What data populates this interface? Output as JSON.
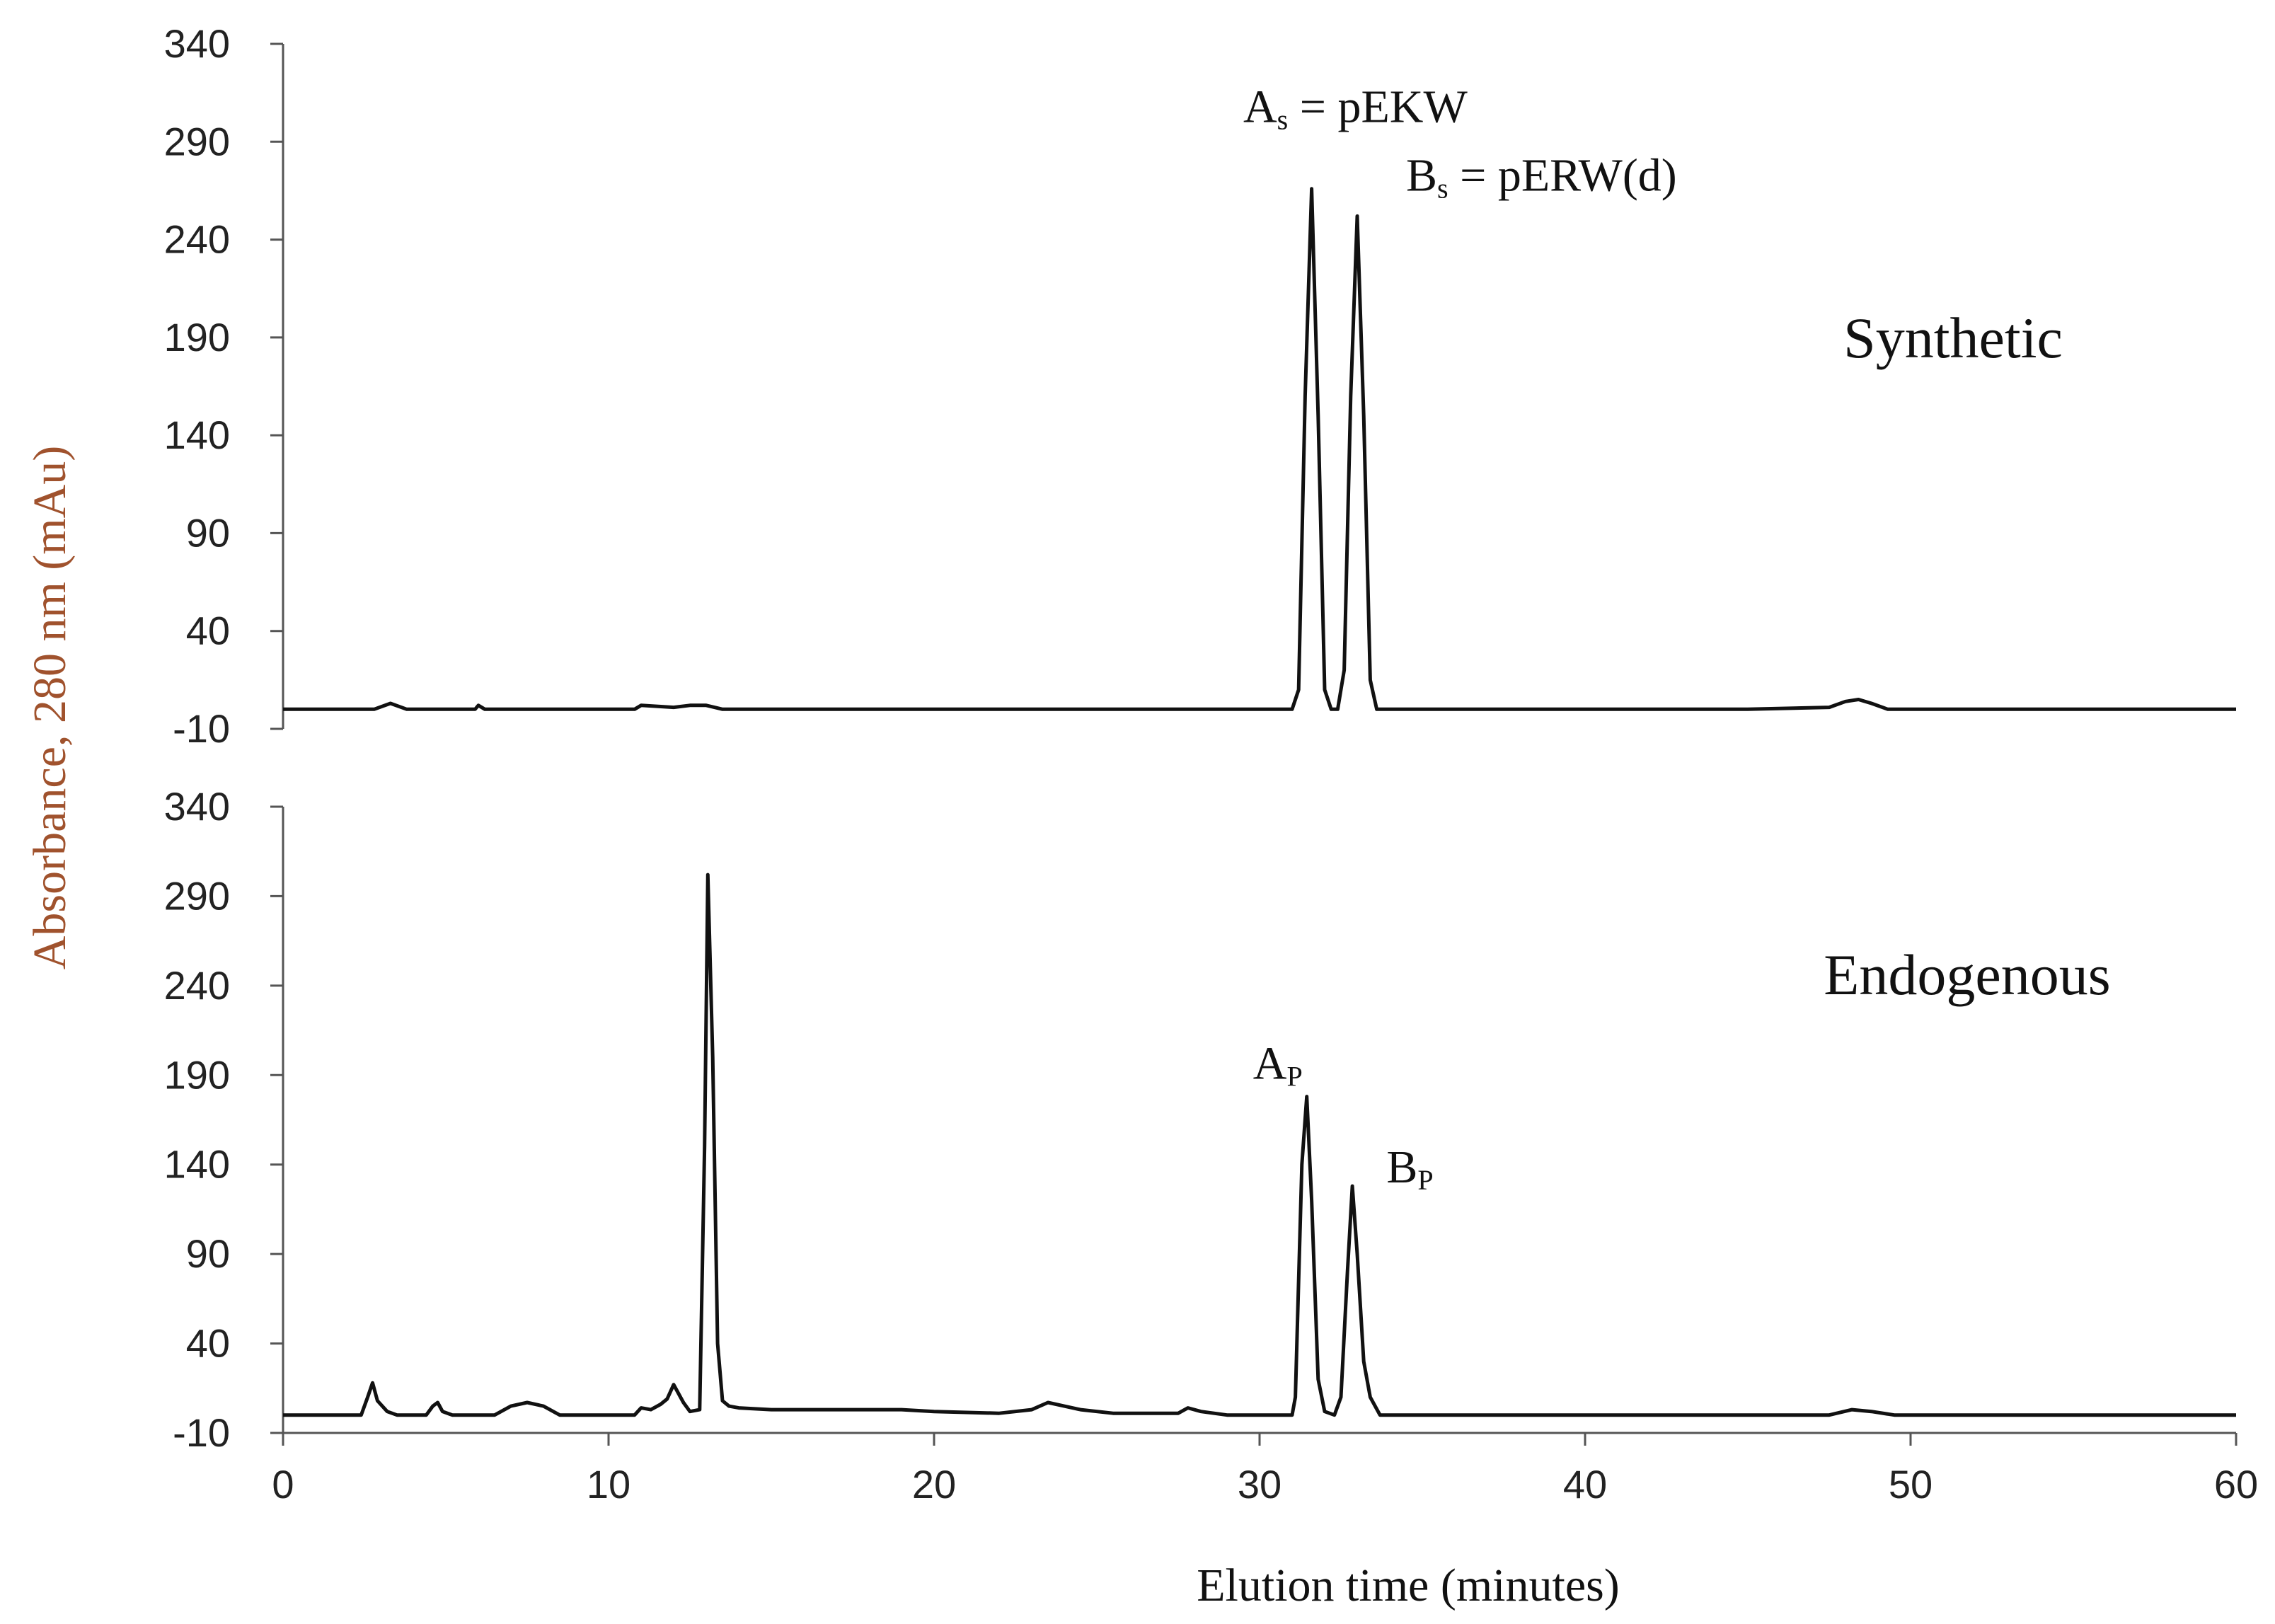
{
  "chart_data": {
    "type": "line",
    "xlabel": "Elution time (minutes)",
    "ylabel": "Absorbance, 280 nm (mAu)",
    "xlim": [
      0,
      60
    ],
    "x_ticks": [
      "0",
      "10",
      "20",
      "30",
      "40",
      "50",
      "60"
    ],
    "panels": [
      {
        "label": "Synthetic",
        "ylim": [
          -10,
          340
        ],
        "y_ticks": [
          "340",
          "290",
          "240",
          "190",
          "140",
          "90",
          "40",
          "-10"
        ],
        "annotations": [
          {
            "main": "A",
            "sub": "s",
            "rest": " = pEKW",
            "x": 29.5,
            "y": 300
          },
          {
            "main": "B",
            "sub": "s",
            "rest": " = pERW(d)",
            "x": 34.5,
            "y": 265
          }
        ],
        "series": [
          {
            "x": [
              0,
              2.8,
              3.3,
              3.8,
              4.5,
              5.9,
              6.0,
              6.2,
              10.8,
              11.0,
              12.0,
              12.5,
              13.0,
              13.5,
              20,
              25,
              30,
              31.0,
              31.2,
              31.4,
              31.6,
              31.8,
              32.0,
              32.2,
              32.4,
              32.6,
              32.8,
              33.0,
              33.2,
              33.4,
              33.6,
              35,
              40,
              45,
              47.5,
              48.0,
              48.4,
              48.8,
              49.3,
              55,
              60
            ],
            "y": [
              0,
              0,
              3,
              0,
              0,
              0,
              2,
              0,
              0,
              2,
              1,
              2,
              2,
              0,
              0,
              0,
              0,
              0,
              10,
              160,
              266,
              150,
              10,
              0,
              0,
              20,
              160,
              252,
              150,
              15,
              0,
              0,
              0,
              0,
              1,
              4,
              5,
              3,
              0,
              0,
              0
            ]
          }
        ]
      },
      {
        "label": "Endogenous",
        "ylim": [
          -10,
          340
        ],
        "y_ticks": [
          "340",
          "290",
          "240",
          "190",
          "140",
          "90",
          "40",
          "-10"
        ],
        "annotations": [
          {
            "main": "A",
            "sub": "P",
            "rest": "",
            "x": 29.8,
            "y": 188
          },
          {
            "main": "B",
            "sub": "P",
            "rest": "",
            "x": 33.9,
            "y": 130
          }
        ],
        "series": [
          {
            "x": [
              0,
              2.4,
              2.6,
              2.75,
              2.9,
              3.2,
              3.5,
              4.4,
              4.6,
              4.75,
              4.9,
              5.2,
              6.5,
              7.0,
              7.5,
              8.0,
              8.5,
              10.8,
              11.0,
              11.3,
              11.6,
              11.8,
              12.0,
              12.3,
              12.5,
              12.8,
              12.95,
              13.05,
              13.2,
              13.35,
              13.5,
              13.7,
              14.0,
              15.0,
              17.0,
              19.0,
              20.0,
              22.0,
              23.0,
              23.5,
              24.0,
              24.5,
              25.5,
              27.5,
              27.8,
              28.2,
              29.0,
              30.5,
              31.0,
              31.1,
              31.3,
              31.45,
              31.6,
              31.8,
              32.0,
              32.3,
              32.5,
              32.7,
              32.85,
              33.0,
              33.2,
              33.4,
              33.7,
              35,
              40,
              47.5,
              48.2,
              48.8,
              49.5,
              55,
              60
            ],
            "y": [
              0,
              0,
              10,
              18,
              8,
              2,
              0,
              0,
              5,
              7,
              2,
              0,
              0,
              5,
              7,
              5,
              0,
              0,
              4,
              3,
              6,
              9,
              17,
              7,
              2,
              3,
              150,
              302,
              200,
              40,
              8,
              5,
              4,
              3,
              3,
              3,
              2,
              1,
              3,
              7,
              5,
              3,
              1,
              1,
              4,
              2,
              0,
              0,
              0,
              10,
              140,
              178,
              120,
              20,
              2,
              0,
              10,
              80,
              128,
              90,
              30,
              10,
              0,
              0,
              0,
              0,
              3,
              2,
              0,
              0,
              0
            ]
          }
        ]
      }
    ]
  }
}
